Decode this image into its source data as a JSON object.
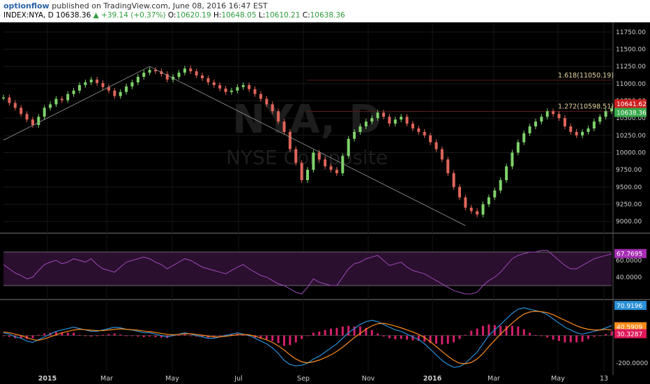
{
  "header": {
    "author": "optionflow",
    "published": "published on TradingView.com, June 08, 2016 16:47 EST",
    "symbol": "INDEX:NYA, D",
    "last": "10638.36",
    "change": "▲ +39.14 (+0.37%)",
    "o_label": "O:",
    "o_value": "10620.19",
    "h_label": "H:",
    "h_value": "10648.05",
    "l_label": "L:",
    "l_value": "10610.21",
    "c_label": "C:",
    "c_value": "10638.36"
  },
  "chart_data": {
    "type": "line",
    "watermark_symbol": "NYA, D",
    "watermark_name": "NYSE Composite",
    "x_ticks": [
      "2015",
      "Mar",
      "May",
      "Jul",
      "Sep",
      "Nov",
      "2016",
      "Mar",
      "May",
      "13"
    ],
    "price": {
      "ylim": [
        8850,
        11850
      ],
      "y_ticks": [
        "11750.00",
        "11500.00",
        "11250.00",
        "11000.00",
        "10750.00",
        "10500.00",
        "10250.00",
        "10000.00",
        "9750.00",
        "9500.00",
        "9250.00",
        "9000.00"
      ],
      "y_tick_values": [
        11750,
        11500,
        11250,
        11000,
        10750,
        10500,
        10250,
        10000,
        9750,
        9500,
        9250,
        9000
      ],
      "fib_levels": [
        {
          "label": "1.618(11050.19)",
          "value": 11050.19
        },
        {
          "label": "1.272(10598.51)",
          "value": 10598.51
        }
      ],
      "high_label": "10641.62",
      "last_label": "10638.36",
      "high_value": 10641.62,
      "last_value": 10638.36,
      "close_series": [
        10800,
        10720,
        10650,
        10560,
        10480,
        10400,
        10520,
        10650,
        10700,
        10780,
        10760,
        10850,
        10900,
        10980,
        11020,
        11060,
        11010,
        10950,
        10900,
        10820,
        10880,
        10960,
        11020,
        11100,
        11160,
        11200,
        11180,
        11140,
        11060,
        11100,
        11160,
        11220,
        11180,
        11120,
        11080,
        11020,
        10980,
        10930,
        10880,
        10900,
        10950,
        10980,
        10920,
        10850,
        10780,
        10700,
        10600,
        10450,
        10300,
        10050,
        9850,
        9600,
        9750,
        10000,
        9900,
        9800,
        9750,
        9700,
        9950,
        10200,
        10300,
        10380,
        10450,
        10500,
        10580,
        10520,
        10420,
        10480,
        10520,
        10420,
        10350,
        10300,
        10250,
        10150,
        10050,
        9900,
        9700,
        9500,
        9350,
        9200,
        9150,
        9100,
        9250,
        9350,
        9450,
        9600,
        9800,
        10000,
        10150,
        10280,
        10380,
        10450,
        10520,
        10600,
        10560,
        10500,
        10380,
        10300,
        10250,
        10300,
        10350,
        10450,
        10520,
        10600,
        10638
      ]
    },
    "rsi": {
      "ylim": [
        15,
        90
      ],
      "y_ticks": [
        "60.0000",
        "40.0000"
      ],
      "y_tick_values": [
        60,
        40
      ],
      "last_label": "67.7695",
      "last_value": 67.7695,
      "values": [
        55,
        50,
        45,
        42,
        38,
        40,
        48,
        55,
        58,
        60,
        56,
        58,
        62,
        60,
        58,
        62,
        55,
        50,
        48,
        46,
        52,
        58,
        60,
        62,
        64,
        62,
        58,
        55,
        50,
        54,
        58,
        62,
        60,
        56,
        52,
        50,
        48,
        46,
        44,
        48,
        52,
        55,
        50,
        46,
        42,
        40,
        36,
        32,
        30,
        26,
        22,
        20,
        28,
        38,
        34,
        32,
        30,
        30,
        40,
        50,
        56,
        58,
        62,
        64,
        66,
        60,
        54,
        56,
        58,
        52,
        48,
        46,
        44,
        40,
        36,
        32,
        28,
        24,
        22,
        20,
        20,
        22,
        30,
        36,
        40,
        46,
        54,
        62,
        66,
        68,
        70,
        70,
        72,
        72,
        66,
        60,
        54,
        50,
        50,
        54,
        58,
        62,
        64,
        66,
        67.7
      ]
    },
    "macd": {
      "ylim": [
        -260,
        245
      ],
      "y_ticks": [
        "-200.0000"
      ],
      "y_tick_values": [
        -200
      ],
      "labels": [
        {
          "label": "70.9196",
          "value": 70.9196,
          "color": "#2a8fd6"
        },
        {
          "label": "40.5909",
          "value": 40.5909,
          "color": "#ff8c1a"
        },
        {
          "label": "30.3287",
          "value": 30.3287,
          "color": "#e0185a"
        }
      ],
      "macd_line": [
        20,
        10,
        -10,
        -20,
        -40,
        -50,
        -30,
        -10,
        10,
        30,
        40,
        50,
        60,
        50,
        40,
        30,
        30,
        40,
        50,
        60,
        55,
        45,
        40,
        30,
        20,
        20,
        10,
        0,
        -10,
        0,
        10,
        20,
        10,
        0,
        -10,
        -20,
        -20,
        -10,
        0,
        10,
        20,
        10,
        0,
        -20,
        -40,
        -60,
        -90,
        -130,
        -180,
        -210,
        -220,
        -215,
        -200,
        -170,
        -150,
        -120,
        -90,
        -60,
        -20,
        20,
        50,
        80,
        100,
        110,
        100,
        80,
        60,
        40,
        30,
        10,
        -10,
        -30,
        -60,
        -100,
        -140,
        -180,
        -210,
        -230,
        -225,
        -200,
        -160,
        -120,
        -60,
        0,
        40,
        80,
        120,
        160,
        190,
        200,
        190,
        180,
        170,
        150,
        120,
        90,
        60,
        40,
        20,
        10,
        20,
        30,
        40,
        55,
        70.9
      ],
      "signal_line": [
        25,
        20,
        10,
        0,
        -15,
        -30,
        -35,
        -25,
        -10,
        5,
        20,
        30,
        40,
        45,
        42,
        38,
        35,
        35,
        40,
        45,
        48,
        45,
        42,
        38,
        32,
        28,
        22,
        15,
        8,
        5,
        8,
        12,
        12,
        8,
        2,
        -5,
        -10,
        -10,
        -6,
        0,
        6,
        8,
        5,
        -5,
        -18,
        -32,
        -50,
        -75,
        -105,
        -140,
        -170,
        -190,
        -198,
        -190,
        -178,
        -160,
        -140,
        -115,
        -85,
        -50,
        -15,
        15,
        45,
        70,
        85,
        88,
        80,
        68,
        55,
        40,
        25,
        8,
        -15,
        -45,
        -80,
        -115,
        -150,
        -180,
        -200,
        -205,
        -195,
        -170,
        -130,
        -80,
        -35,
        10,
        50,
        90,
        125,
        155,
        170,
        175,
        172,
        165,
        150,
        130,
        110,
        90,
        70,
        55,
        45,
        40,
        40,
        44,
        40.6
      ],
      "histogram": [
        -5,
        -10,
        -20,
        -20,
        -25,
        -20,
        5,
        15,
        20,
        25,
        20,
        20,
        20,
        5,
        -2,
        -8,
        -5,
        5,
        10,
        15,
        7,
        0,
        -2,
        -8,
        -12,
        -8,
        -12,
        -15,
        -18,
        -5,
        2,
        8,
        -2,
        -8,
        -12,
        -15,
        -10,
        0,
        6,
        10,
        14,
        2,
        -5,
        -15,
        -22,
        -28,
        -40,
        -55,
        -75,
        -70,
        -50,
        -25,
        -2,
        20,
        28,
        40,
        50,
        55,
        65,
        70,
        65,
        65,
        55,
        40,
        15,
        -8,
        -20,
        -28,
        -25,
        -30,
        -35,
        -38,
        -45,
        -55,
        -60,
        -65,
        -60,
        -50,
        -25,
        5,
        35,
        50,
        70,
        80,
        75,
        70,
        70,
        70,
        65,
        45,
        20,
        5,
        -2,
        -15,
        -30,
        -40,
        -50,
        -50,
        -50,
        -45,
        -25,
        -10,
        0,
        11,
        30.3
      ]
    }
  }
}
